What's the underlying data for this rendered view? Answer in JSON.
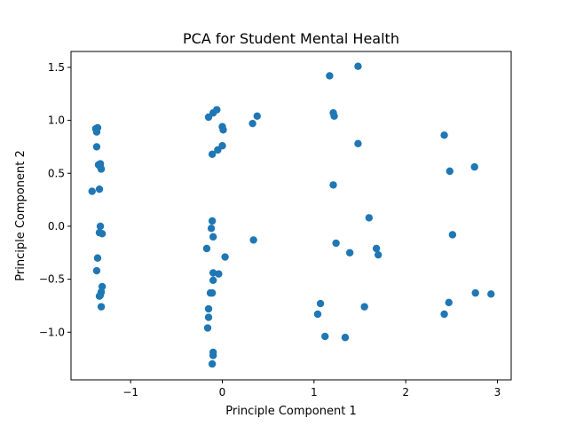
{
  "chart_data": {
    "type": "scatter",
    "title": "PCA for Student Mental Health",
    "xlabel": "Principle Component 1",
    "ylabel": "Principle Component 2",
    "xlim": [
      -1.65,
      3.15
    ],
    "ylim": [
      -1.45,
      1.65
    ],
    "xticks": [
      -1,
      0,
      1,
      2,
      3
    ],
    "xtick_labels": [
      "−1",
      "0",
      "1",
      "2",
      "3"
    ],
    "yticks": [
      -1.0,
      -0.5,
      0.0,
      0.5,
      1.0,
      1.5
    ],
    "ytick_labels": [
      "−1.0",
      "−0.5",
      "0.0",
      "0.5",
      "1.0",
      "1.5"
    ],
    "grid": false,
    "marker_color": "#1f77b4",
    "series": [
      {
        "x": [
          -1.38,
          -1.36,
          -1.37,
          -1.37,
          -1.35,
          -1.33,
          -1.33,
          -1.32,
          -1.34,
          -1.42,
          -1.33,
          -1.34,
          -1.31,
          -1.36,
          -1.37,
          -1.31,
          -1.32,
          -1.33,
          -1.34,
          -1.32,
          -0.15,
          -0.1,
          -0.06,
          0.0,
          0.01,
          -0.05,
          0.0,
          -0.11,
          -0.11,
          -0.12,
          -0.1,
          -0.17,
          -0.1,
          -0.04,
          -0.1,
          0.03,
          -0.13,
          -0.11,
          -0.15,
          -0.15,
          -0.16,
          -0.1,
          -0.1,
          -0.11,
          0.33,
          0.38,
          0.34,
          1.17,
          1.48,
          1.21,
          1.22,
          1.48,
          1.21,
          1.6,
          1.24,
          1.39,
          1.68,
          1.7,
          1.07,
          1.04,
          1.12,
          1.34,
          1.55,
          2.42,
          2.48,
          2.75,
          2.51,
          2.76,
          2.93,
          2.47,
          2.42
        ],
        "y": [
          0.92,
          0.93,
          0.89,
          0.75,
          0.58,
          0.59,
          0.56,
          0.54,
          0.35,
          0.33,
          0.0,
          -0.06,
          -0.07,
          -0.3,
          -0.42,
          -0.57,
          -0.62,
          -0.65,
          -0.66,
          -0.76,
          1.03,
          1.07,
          1.1,
          0.94,
          0.91,
          0.72,
          0.76,
          0.68,
          0.05,
          -0.02,
          -0.1,
          -0.21,
          -0.44,
          -0.45,
          -0.51,
          -0.29,
          -0.63,
          -0.63,
          -0.78,
          -0.86,
          -0.96,
          -1.19,
          -1.22,
          -1.3,
          0.97,
          1.04,
          -0.13,
          1.42,
          1.51,
          1.07,
          1.04,
          0.78,
          0.39,
          0.08,
          -0.16,
          -0.25,
          -0.21,
          -0.27,
          -0.73,
          -0.83,
          -1.04,
          -1.05,
          -0.76,
          0.86,
          0.52,
          0.56,
          -0.08,
          -0.63,
          -0.64,
          -0.72,
          -0.83
        ]
      }
    ]
  }
}
